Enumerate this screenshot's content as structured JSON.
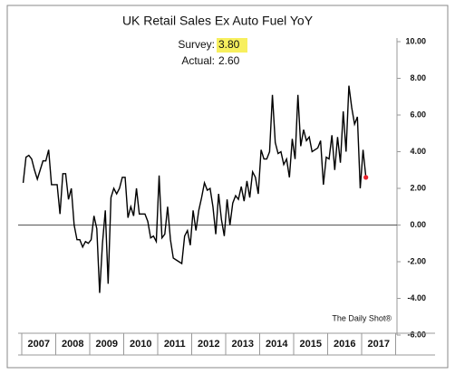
{
  "chart_data": {
    "type": "line",
    "title": "UK Retail Sales Ex Auto Fuel YoY",
    "annotations": [
      {
        "label": "Survey:",
        "value": "3.80"
      },
      {
        "label": "Actual:",
        "value": "2.60"
      }
    ],
    "source": "The Daily Shot®",
    "categories": [
      "2007",
      null,
      null,
      null,
      null,
      null,
      null,
      null,
      null,
      null,
      null,
      null,
      "2008",
      null,
      null,
      null,
      null,
      null,
      null,
      null,
      null,
      null,
      null,
      null,
      "2009",
      null,
      null,
      null,
      null,
      null,
      null,
      null,
      null,
      null,
      null,
      null,
      "2010",
      null,
      null,
      null,
      null,
      null,
      null,
      null,
      null,
      null,
      null,
      null,
      "2011",
      null,
      null,
      null,
      null,
      null,
      null,
      null,
      null,
      null,
      null,
      null,
      "2012",
      null,
      null,
      null,
      null,
      null,
      null,
      null,
      null,
      null,
      null,
      null,
      "2013",
      null,
      null,
      null,
      null,
      null,
      null,
      null,
      null,
      null,
      null,
      null,
      "2014",
      null,
      null,
      null,
      null,
      null,
      null,
      null,
      null,
      null,
      null,
      null,
      "2015",
      null,
      null,
      null,
      null,
      null,
      null,
      null,
      null,
      null,
      null,
      null,
      "2016",
      null,
      null,
      null,
      null,
      null,
      null,
      null,
      null,
      null,
      null,
      null,
      "2017",
      null
    ],
    "values": [
      2.3,
      3.7,
      3.8,
      3.6,
      3.0,
      2.5,
      3.0,
      3.5,
      3.5,
      4.1,
      2.2,
      2.2,
      2.2,
      0.6,
      2.8,
      2.8,
      1.4,
      2.0,
      0.0,
      -0.8,
      -0.8,
      -1.2,
      -0.9,
      -1.0,
      -0.8,
      0.5,
      -0.2,
      -3.7,
      -1.0,
      0.8,
      -3.2,
      1.5,
      2.0,
      1.7,
      2.0,
      2.6,
      2.6,
      0.4,
      1.0,
      0.5,
      2.0,
      0.6,
      0.6,
      0.6,
      0.2,
      -0.7,
      -0.6,
      -0.9,
      2.7,
      -0.7,
      -0.5,
      1.0,
      -0.8,
      -1.8,
      -1.9,
      -2.0,
      -2.1,
      -0.6,
      -0.3,
      -1.1,
      0.8,
      -0.3,
      0.8,
      1.5,
      2.3,
      1.9,
      2.0,
      1.0,
      -0.5,
      1.7,
      0.3,
      -0.6,
      1.4,
      0.0,
      1.2,
      1.6,
      1.4,
      2.1,
      1.3,
      2.4,
      1.5,
      2.9,
      2.6,
      1.7,
      4.1,
      3.6,
      3.6,
      4.0,
      7.1,
      4.5,
      3.9,
      4.0,
      3.3,
      3.6,
      2.6,
      4.7,
      3.6,
      7.1,
      4.3,
      5.2,
      4.6,
      4.8,
      4.0,
      4.1,
      4.2,
      4.6,
      2.2,
      3.7,
      3.6,
      4.9,
      3.0,
      4.8,
      3.4,
      6.2,
      4.0,
      7.6,
      6.4,
      5.5,
      5.9,
      2.0,
      4.1,
      2.6
    ],
    "color": "#000000",
    "last_point_color": "#e8202a",
    "highlight_color": "#f7ef5e",
    "ylim": [
      -6,
      10
    ],
    "yticks": [
      {
        "value": -6,
        "label": "-6.00"
      },
      {
        "value": -4,
        "label": "-4.00"
      },
      {
        "value": -2,
        "label": "-2.00"
      },
      {
        "value": 0,
        "label": "0.00"
      },
      {
        "value": 2,
        "label": "2.00"
      },
      {
        "value": 4,
        "label": "4.00"
      },
      {
        "value": 6,
        "label": "6.00"
      },
      {
        "value": 8,
        "label": "8.00"
      },
      {
        "value": 10,
        "label": "10.00"
      }
    ]
  }
}
